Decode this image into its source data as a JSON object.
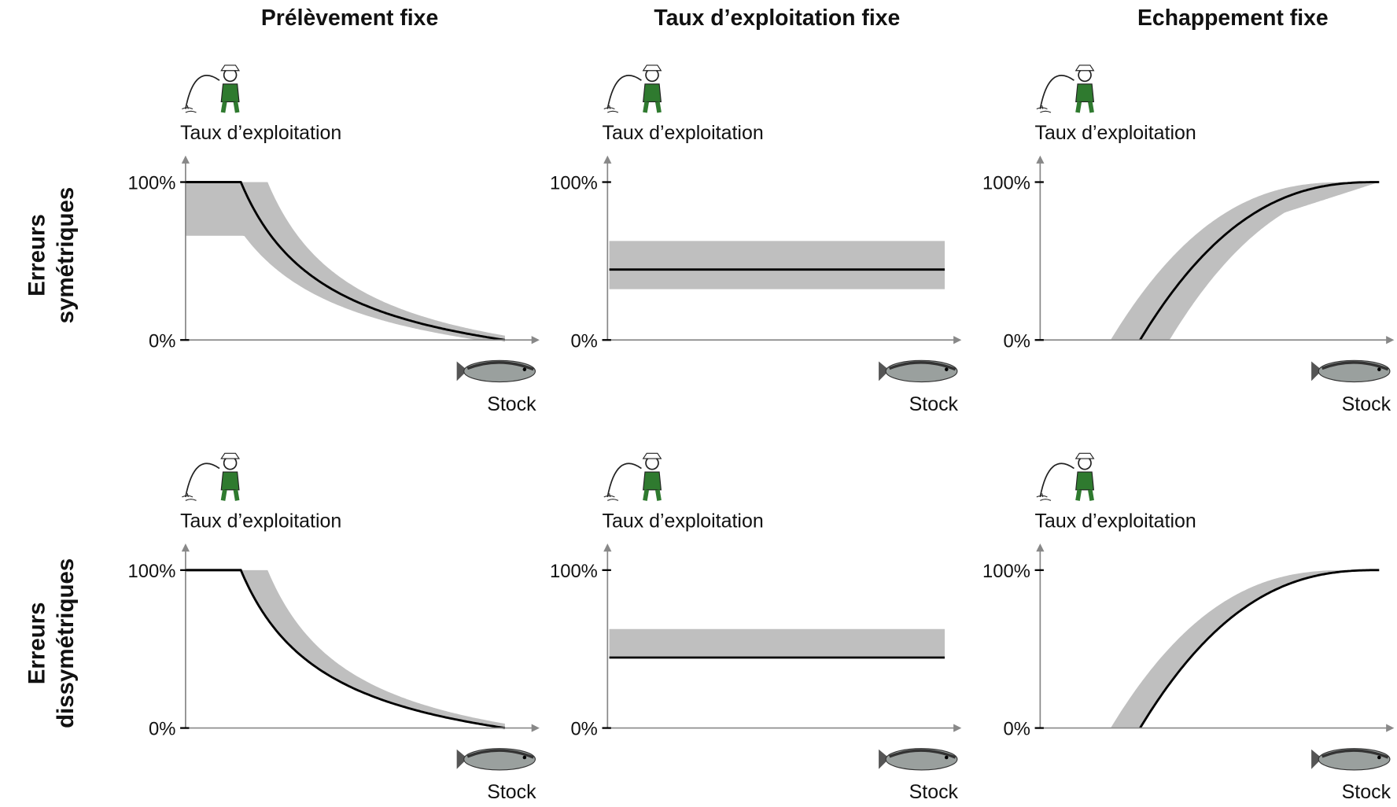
{
  "columns": [
    "Prélèvement fixe",
    "Taux d’exploitation fixe",
    "Echappement fixe"
  ],
  "rows": [
    [
      "Erreurs",
      "symétriques"
    ],
    [
      "Erreurs",
      "dissymétriques"
    ]
  ],
  "panels": [
    {
      "y_label": "Taux d’exploitation",
      "x_label": "Stock",
      "y_ticks": [
        "100%",
        "0%"
      ]
    },
    {
      "y_label": "Taux d’exploitation",
      "x_label": "Stock",
      "y_ticks": [
        "100%",
        "0%"
      ]
    },
    {
      "y_label": "Taux d’exploitation",
      "x_label": "Stock",
      "y_ticks": [
        "100%",
        "0%"
      ]
    },
    {
      "y_label": "Taux d’exploitation",
      "x_label": "Stock",
      "y_ticks": [
        "100%",
        "0%"
      ]
    },
    {
      "y_label": "Taux d’exploitation",
      "x_label": "Stock",
      "y_ticks": [
        "100%",
        "0%"
      ]
    },
    {
      "y_label": "Taux d’exploitation",
      "x_label": "Stock",
      "y_ticks": [
        "100%",
        "0%"
      ]
    }
  ]
}
